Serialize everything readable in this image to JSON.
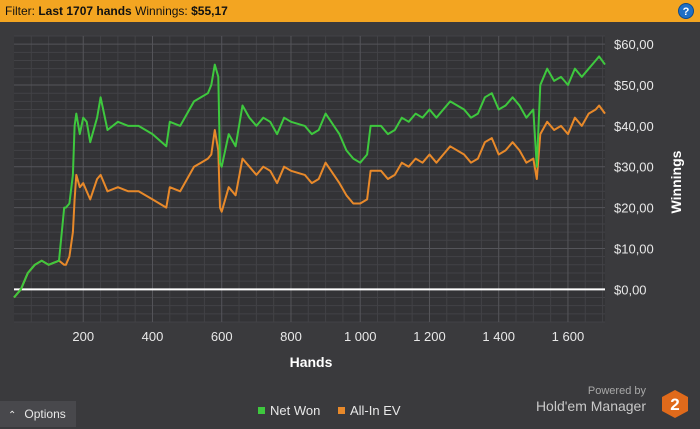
{
  "filter": {
    "label": "Filter:",
    "value": "Last 1707 hands",
    "winnings_label": "Winnings:",
    "winnings_value": "$55,17"
  },
  "help_icon": "?",
  "options": {
    "icon": "chevron-up-icon",
    "label": "Options"
  },
  "brand": {
    "powered_by": "Powered by",
    "name": "Hold'em Manager",
    "logo_text": "2",
    "logo_color": "#e06a1b"
  },
  "chart_data": {
    "type": "line",
    "xlabel": "Hands",
    "ylabel": "Winnings",
    "xlim": [
      0,
      1707
    ],
    "ylim": [
      -8,
      62
    ],
    "x_ticks": [
      200,
      400,
      600,
      800,
      1000,
      1200,
      1400,
      1600
    ],
    "x_tick_labels": [
      "200",
      "400",
      "600",
      "800",
      "1 000",
      "1 200",
      "1 400",
      "1 600"
    ],
    "y_ticks": [
      0,
      10,
      20,
      30,
      40,
      50,
      60
    ],
    "y_tick_labels": [
      "$0,00",
      "$10,00",
      "$20,00",
      "$30,00",
      "$40,00",
      "$50,00",
      "$60,00"
    ],
    "grid": true,
    "baseline": 0,
    "legend_position": "bottom-center",
    "series": [
      {
        "name": "Net Won",
        "color": "#3ec83e",
        "x": [
          0,
          20,
          40,
          60,
          80,
          100,
          130,
          145,
          150,
          160,
          170,
          175,
          180,
          190,
          200,
          210,
          220,
          240,
          250,
          270,
          300,
          330,
          360,
          400,
          440,
          450,
          480,
          500,
          520,
          540,
          560,
          570,
          580,
          590,
          595,
          600,
          620,
          640,
          660,
          680,
          700,
          720,
          740,
          760,
          780,
          800,
          840,
          860,
          880,
          900,
          940,
          960,
          980,
          1000,
          1020,
          1030,
          1060,
          1080,
          1100,
          1120,
          1140,
          1160,
          1180,
          1200,
          1220,
          1240,
          1260,
          1300,
          1320,
          1340,
          1360,
          1380,
          1400,
          1420,
          1440,
          1460,
          1480,
          1500,
          1510,
          1520,
          1540,
          1560,
          1580,
          1600,
          1620,
          1640,
          1660,
          1680,
          1690,
          1707
        ],
        "y": [
          -2,
          0,
          4,
          6,
          7,
          6,
          7,
          20,
          20,
          21,
          28,
          40,
          43,
          38,
          42,
          41,
          36,
          42,
          47,
          39,
          41,
          40,
          40,
          38,
          35,
          41,
          40,
          43,
          46,
          47,
          48,
          50,
          55,
          52,
          31,
          30,
          38,
          35,
          45,
          42,
          40,
          42,
          41,
          38,
          42,
          41,
          40,
          38,
          39,
          43,
          38,
          34,
          32,
          31,
          33,
          40,
          40,
          38,
          39,
          42,
          41,
          43,
          42,
          44,
          42,
          44,
          46,
          44,
          42,
          43,
          47,
          48,
          44,
          45,
          47,
          45,
          42,
          44,
          30,
          50,
          54,
          51,
          52,
          50,
          54,
          52,
          54,
          56,
          57,
          55
        ]
      },
      {
        "name": "All-In EV",
        "color": "#e8892a",
        "x": [
          0,
          20,
          40,
          60,
          80,
          100,
          130,
          145,
          150,
          160,
          170,
          175,
          180,
          190,
          200,
          210,
          220,
          240,
          250,
          270,
          300,
          330,
          360,
          400,
          440,
          450,
          480,
          500,
          520,
          540,
          560,
          570,
          580,
          590,
          595,
          600,
          620,
          640,
          660,
          680,
          700,
          720,
          740,
          760,
          780,
          800,
          840,
          860,
          880,
          900,
          940,
          960,
          980,
          1000,
          1020,
          1030,
          1060,
          1080,
          1100,
          1120,
          1140,
          1160,
          1180,
          1200,
          1220,
          1240,
          1260,
          1300,
          1320,
          1340,
          1360,
          1380,
          1400,
          1420,
          1440,
          1460,
          1480,
          1500,
          1510,
          1520,
          1540,
          1560,
          1580,
          1600,
          1620,
          1640,
          1660,
          1680,
          1690,
          1707
        ],
        "y": [
          -2,
          0,
          4,
          6,
          7,
          6,
          7,
          6,
          6,
          8,
          14,
          22,
          28,
          25,
          26,
          24,
          22,
          27,
          28,
          24,
          25,
          24,
          24,
          22,
          20,
          25,
          24,
          27,
          30,
          31,
          32,
          33,
          39,
          34,
          20,
          19,
          25,
          23,
          32,
          30,
          28,
          30,
          29,
          26,
          30,
          29,
          28,
          26,
          27,
          31,
          26,
          23,
          21,
          21,
          22,
          29,
          29,
          27,
          28,
          31,
          30,
          32,
          31,
          33,
          31,
          33,
          35,
          33,
          31,
          32,
          36,
          37,
          33,
          34,
          36,
          34,
          31,
          32,
          27,
          38,
          41,
          39,
          40,
          38,
          42,
          40,
          43,
          44,
          45,
          43
        ]
      }
    ]
  }
}
